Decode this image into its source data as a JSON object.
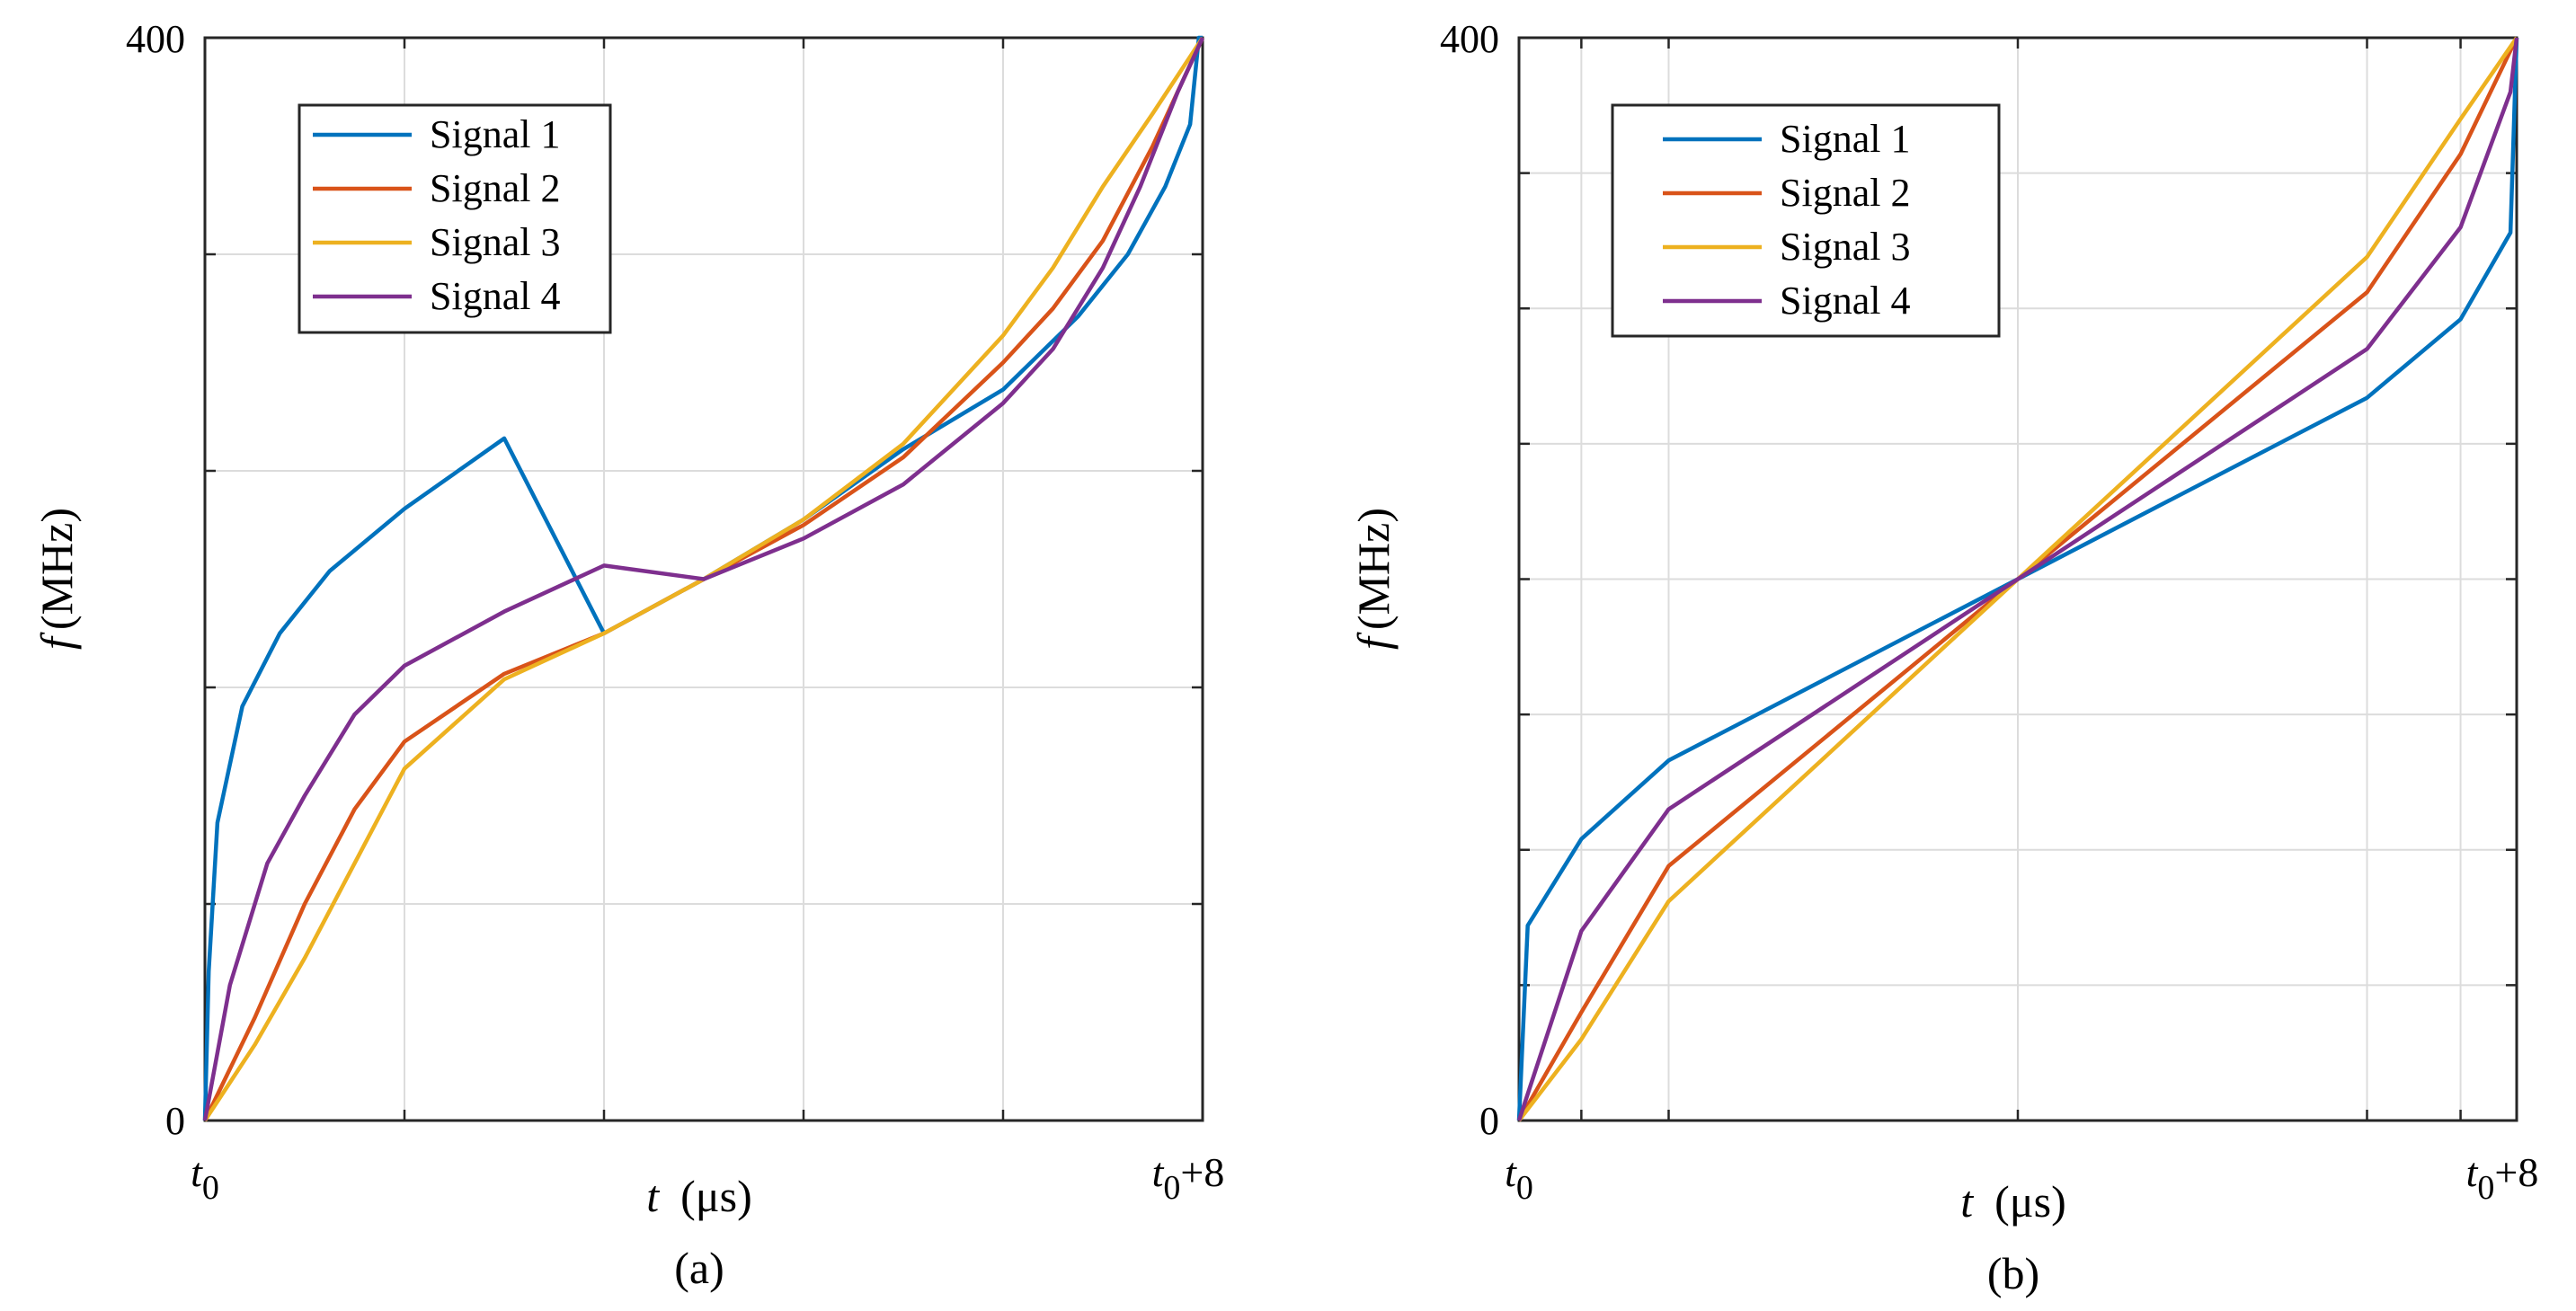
{
  "chart_data": [
    {
      "panel": "a",
      "type": "line",
      "caption": "(a)",
      "ylabel_symbol": "f",
      "ylabel_unit": "(MHz)",
      "xlabel_symbol": "t",
      "xlabel_unit": "(μs)",
      "ylim": [
        0,
        400
      ],
      "xlim": [
        0,
        8
      ],
      "ytick_labels": [
        "0",
        "400"
      ],
      "xtick_left": {
        "base": "t",
        "sub": "0"
      },
      "xtick_right": {
        "base": "t",
        "sub": "0",
        "suffix": "+8"
      },
      "grid": true,
      "legend_position": "top-left",
      "x_grid": [
        0,
        1.6,
        3.2,
        4.8,
        6.4,
        8
      ],
      "y_grid": [
        0,
        80,
        160,
        240,
        320,
        400
      ],
      "series": [
        {
          "name": "Signal 1",
          "color": "#0072BD",
          "x": [
            0,
            0.03,
            0.1,
            0.3,
            0.6,
            1.0,
            1.6,
            2.4,
            3.2,
            4.0,
            4.8,
            5.6,
            6.4,
            7.0,
            7.4,
            7.7,
            7.9,
            7.97,
            8.0
          ],
          "y": [
            0,
            55,
            110,
            153,
            180,
            203,
            226,
            252,
            180,
            200,
            222,
            248,
            270,
            297,
            320,
            345,
            368,
            400,
            400
          ]
        },
        {
          "name": "Signal 2",
          "color": "#D95319",
          "x": [
            0,
            0.4,
            0.8,
            1.2,
            1.6,
            2.4,
            3.2,
            4.0,
            4.8,
            5.6,
            6.4,
            6.8,
            7.2,
            7.6,
            8.0
          ],
          "y": [
            0,
            38,
            80,
            115,
            140,
            165,
            180,
            200,
            220,
            245,
            280,
            300,
            325,
            360,
            400
          ]
        },
        {
          "name": "Signal 3",
          "color": "#EDB120",
          "x": [
            0,
            0.4,
            0.8,
            1.2,
            1.6,
            2.4,
            3.2,
            4.0,
            4.8,
            5.6,
            6.4,
            6.8,
            7.2,
            7.6,
            8.0
          ],
          "y": [
            0,
            28,
            60,
            95,
            130,
            163,
            180,
            200,
            222,
            250,
            290,
            315,
            345,
            372,
            400
          ]
        },
        {
          "name": "Signal 4",
          "color": "#7E2F8E",
          "x": [
            0,
            0.2,
            0.5,
            0.8,
            1.2,
            1.6,
            2.4,
            3.2,
            4.0,
            4.8,
            5.6,
            6.4,
            6.8,
            7.2,
            7.5,
            7.8,
            8.0
          ],
          "y": [
            0,
            50,
            95,
            120,
            150,
            168,
            188,
            205,
            200,
            215,
            235,
            265,
            285,
            315,
            345,
            380,
            400
          ]
        }
      ]
    },
    {
      "panel": "b",
      "type": "line",
      "caption": "(b)",
      "ylabel_symbol": "f",
      "ylabel_unit": "(MHz)",
      "xlabel_symbol": "t",
      "xlabel_unit": "(μs)",
      "ylim": [
        0,
        400
      ],
      "xlim": [
        0,
        8
      ],
      "ytick_labels": [
        "0",
        "400"
      ],
      "xtick_left": {
        "base": "t",
        "sub": "0"
      },
      "xtick_right": {
        "base": "t",
        "sub": "0",
        "suffix": "+8"
      },
      "grid": true,
      "legend_position": "top-left",
      "x_grid": [
        0,
        0.5,
        1.2,
        4.0,
        6.8,
        7.55,
        8
      ],
      "y_grid": [
        0,
        50,
        100,
        150,
        200,
        250,
        300,
        350,
        400
      ],
      "series": [
        {
          "name": "Signal 1",
          "color": "#0072BD",
          "x": [
            0,
            0.07,
            0.5,
            1.2,
            4.0,
            6.8,
            7.55,
            7.95,
            8.0
          ],
          "y": [
            0,
            72,
            104,
            133,
            200,
            267,
            296,
            328,
            400
          ]
        },
        {
          "name": "Signal 2",
          "color": "#D95319",
          "x": [
            0,
            0.5,
            1.2,
            4.0,
            6.8,
            7.55,
            8.0
          ],
          "y": [
            0,
            40,
            94,
            200,
            306,
            357,
            400
          ]
        },
        {
          "name": "Signal 3",
          "color": "#EDB120",
          "x": [
            0,
            0.5,
            1.2,
            4.0,
            6.8,
            7.55,
            8.0
          ],
          "y": [
            0,
            30,
            81,
            200,
            319,
            370,
            400
          ]
        },
        {
          "name": "Signal 4",
          "color": "#7E2F8E",
          "x": [
            0,
            0.5,
            1.2,
            4.0,
            6.8,
            7.55,
            7.95,
            8.0
          ],
          "y": [
            0,
            70,
            115,
            200,
            285,
            330,
            380,
            400
          ]
        }
      ]
    }
  ]
}
